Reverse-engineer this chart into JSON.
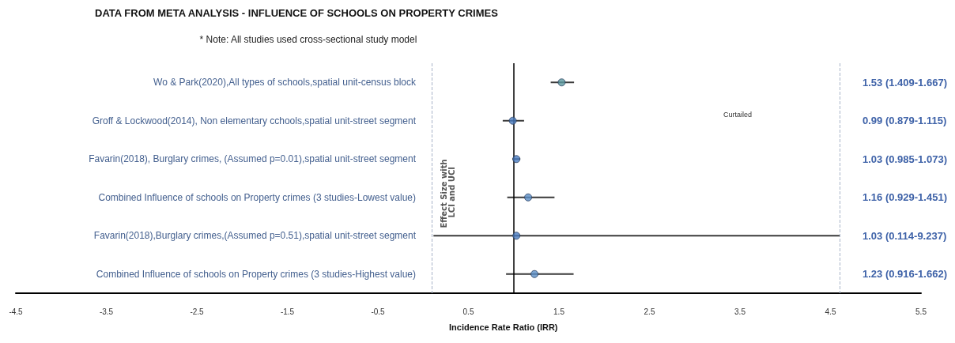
{
  "chart_data": {
    "type": "scatter",
    "orientation": "horizontal",
    "title": "DATA FROM META ANALYSIS - INFLUENCE OF SCHOOLS ON PROPERTY CRIMES",
    "xlabel": "Incidence Rate Ratio (IRR)",
    "ylabel": "Effect Size with LCI and UCI",
    "annotations": [
      "* Note: All studies used cross-sectional study model",
      "Curtailed",
      "1.53 (1.409-1.667)",
      "0.99 (0.879-1.115)",
      "1.03 (0.985-1.073)",
      "1.16 (0.929-1.451)",
      "1.03 (0.114-9.237)",
      "1.23 (0.916-1.662)"
    ],
    "categories": [
      "Wo & Park(2020),All types of schools,spatial unit-census block",
      "Groff & Lockwood(2014), Non elementary cchools,spatial unit-street segment",
      "Favarin(2018), Burglary crimes, (Assumed p=0.01),spatial unit-street segment",
      "Combined Influence of schools on Property crimes (3 studies-Lowest value)",
      "Favarin(2018),Burglary crimes,(Assumed p=0.51),spatial unit-street segment",
      "Combined Influence of schools on Property crimes (3 studies-Highest value)"
    ],
    "values": [
      1.53,
      0.99,
      1.03,
      1.16,
      1.03,
      1.23
    ],
    "errors": [
      [
        1.409,
        1.667
      ],
      [
        0.879,
        1.115
      ],
      [
        0.985,
        1.073
      ],
      [
        0.929,
        1.451
      ],
      [
        0.114,
        4.6
      ],
      [
        0.916,
        1.662
      ]
    ],
    "colors": [
      "#5b9aa0",
      "#4a7cc0",
      "#4a7cc0",
      "#5b8fc7",
      "#4a7cc0",
      "#5b8fc7"
    ],
    "xlim": [
      -4.5,
      5.5
    ],
    "xticks": [
      -4.5,
      -3.5,
      -2.5,
      -1.5,
      -0.5,
      0.5,
      1.5,
      2.5,
      3.5,
      4.5,
      5.5
    ],
    "ref_lines": [
      {
        "axis": "x",
        "value": 1,
        "color": "#000000",
        "line_style": "solid"
      },
      {
        "axis": "x",
        "value": 0.1,
        "color": "#a8b4c8",
        "line_style": "dashed"
      },
      {
        "axis": "x",
        "value": 4.6,
        "color": "#a8b4c8",
        "line_style": "dashed"
      }
    ],
    "marker": "circle",
    "grid": false
  }
}
